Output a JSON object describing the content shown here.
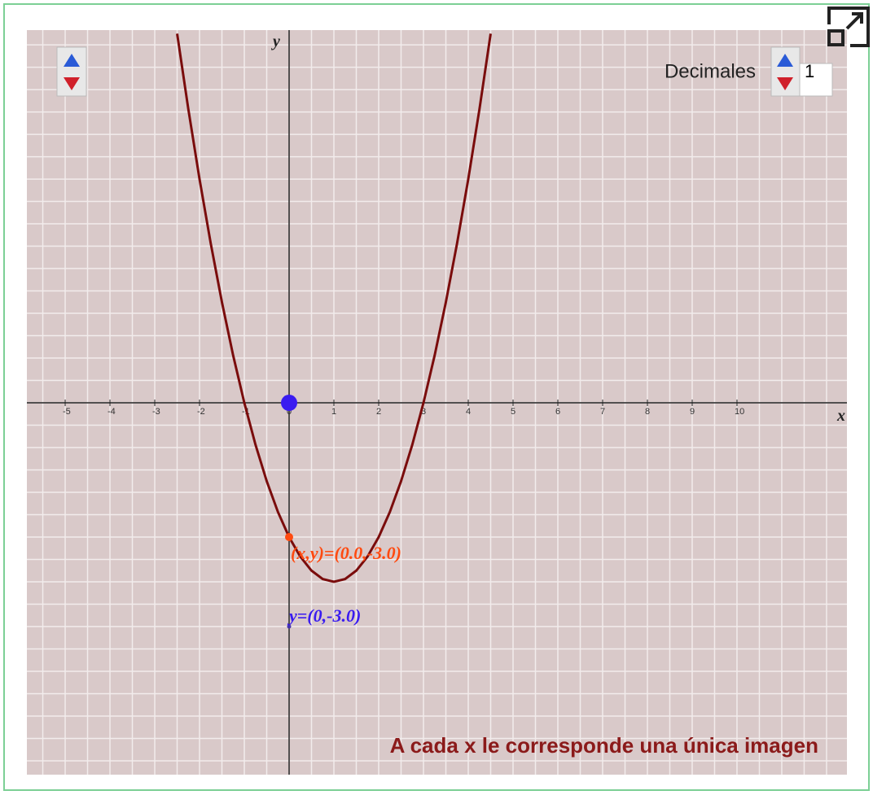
{
  "controls": {
    "decimals_label": "Decimales",
    "decimals_value": "1"
  },
  "graph": {
    "x_label": "x",
    "y_label": "y",
    "xlim": [
      -5.855,
      12.455
    ],
    "ylim": [
      -8.31,
      8.33
    ],
    "xticks": [
      -5,
      -4,
      -3,
      -2,
      -1,
      0,
      1,
      2,
      3,
      4,
      5,
      6,
      7,
      8,
      9,
      10
    ],
    "curve": {
      "x": [
        -2.5,
        -2.25,
        -2,
        -1.75,
        -1.5,
        -1.25,
        -1,
        -0.75,
        -0.5,
        -0.25,
        0,
        0.25,
        0.5,
        0.75,
        1,
        1.25,
        1.5,
        1.75,
        2,
        2.25,
        2.5,
        2.75,
        3,
        3.25,
        3.5,
        3.75,
        4,
        4.25,
        4.5
      ],
      "y": [
        8.25,
        6.5625,
        5,
        3.5625,
        2.25,
        1.0625,
        0,
        -0.9375,
        -1.75,
        -2.4375,
        -3,
        -3.4375,
        -3.75,
        -3.9375,
        -4,
        -3.9375,
        -3.75,
        -3.4375,
        -3,
        -2.4375,
        -1.75,
        -0.9375,
        0,
        1.0625,
        2.25,
        3.5625,
        5,
        6.5625,
        8.25
      ]
    },
    "point": {
      "label": "(x,y)=(0.0,-3.0)",
      "x": 0,
      "y": -3
    },
    "y_point": {
      "label": "y=(0,-3.0)"
    },
    "control_point": {
      "x": 0,
      "y": 0
    },
    "caption": "A cada x le corresponde una única imagen"
  }
}
